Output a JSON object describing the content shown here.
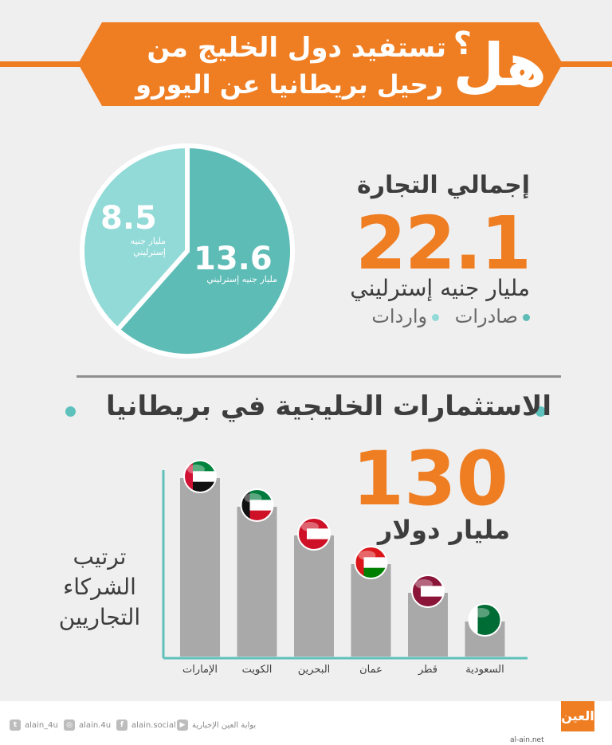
{
  "header": {
    "big_word": "هل",
    "line1": "تستفيد دول الخليج من",
    "question_mark": "؟",
    "line2": "رحيل بريطانيا عن اليورو"
  },
  "trade": {
    "title": "إجمالي التجارة",
    "total": "22.1",
    "unit": "مليار جنيه إسترليني",
    "legend": [
      "صادرات",
      "واردات"
    ]
  },
  "pie": {
    "slices": [
      {
        "value": 13.6,
        "label": "13.6",
        "unit": "مليار جنيه إسترليني",
        "color": "#5ebcb6"
      },
      {
        "value": 8.5,
        "label": "8.5",
        "unit": "مليار جنيه إسترليني",
        "color": "#92dad7"
      }
    ]
  },
  "investment": {
    "title": "الاستثمارات الخليجية في بريطانيا",
    "value": "130",
    "unit": "مليار دولار",
    "ranking_label": "ترتيب الشركاء التجاريين"
  },
  "chart_data": {
    "type": "bar",
    "title": "ترتيب الشركاء التجاريين",
    "categories": [
      "الإمارات",
      "الكويت",
      "البحرين",
      "عمان",
      "قطر",
      "السعودية"
    ],
    "values": [
      6,
      5,
      4,
      3,
      2,
      1
    ],
    "xlabel": "",
    "ylabel": "",
    "flags": [
      "uae-flag-icon",
      "kuwait-flag-icon",
      "bahrain-flag-icon",
      "oman-flag-icon",
      "qatar-flag-icon",
      "saudi-flag-icon"
    ]
  },
  "colors": {
    "accent": "#ef7d22",
    "teal": "#5ebcb6",
    "light_teal": "#92dad7",
    "bar": "#a9a9a9"
  },
  "footer": {
    "twitter": "alain_4u",
    "instagram": "alain.4u",
    "facebook": "alain.social",
    "youtube": "بوابة العين الإخبارية",
    "logo": "العين",
    "site": "al-ain.net"
  }
}
